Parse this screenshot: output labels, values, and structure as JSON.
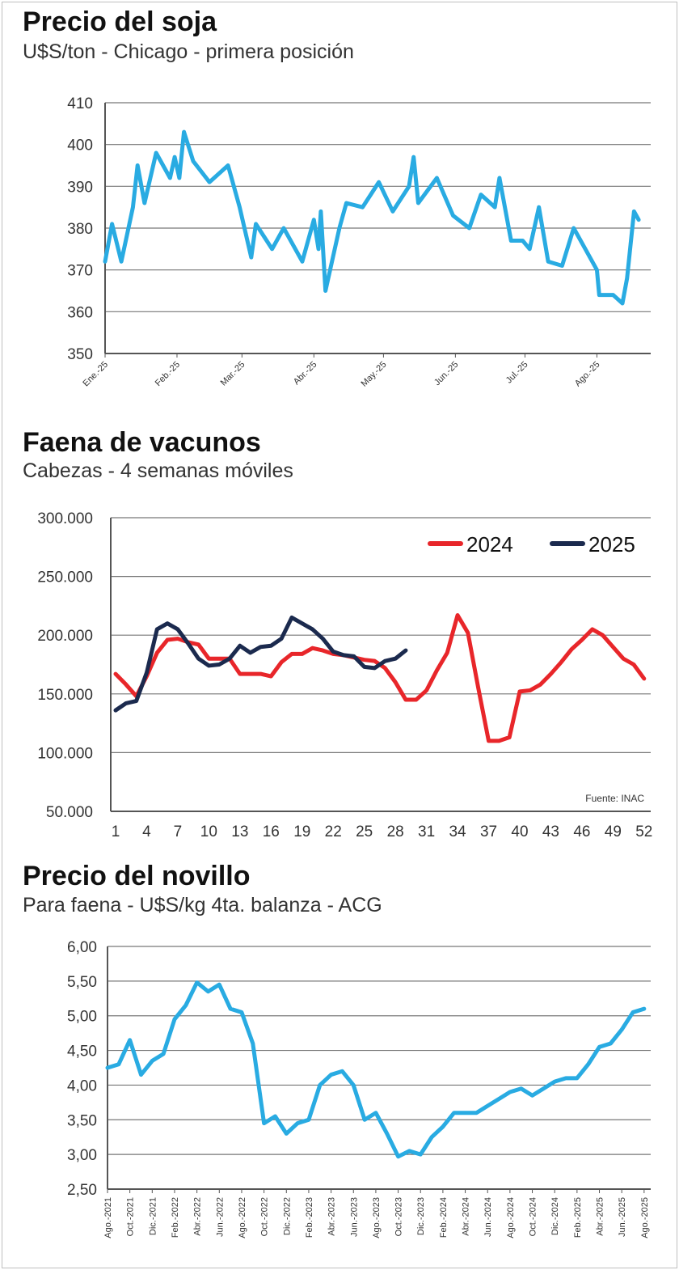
{
  "colors": {
    "light_blue": "#29abe2",
    "red": "#e8262a",
    "navy": "#1b2a4e",
    "grid": "#555555"
  },
  "chart_data": [
    {
      "type": "line",
      "title": "Precio del soja",
      "subtitle": "U$S/ton - Chicago - primera posición",
      "ylim": [
        350,
        410
      ],
      "yticks": [
        "350",
        "360",
        "370",
        "380",
        "390",
        "400",
        "410"
      ],
      "xtick_labels": [
        "Ene.-25",
        "Feb.-25",
        "Mar.-25",
        "Abr.-25",
        "May.-25",
        "Jun.-25",
        "Jul.-25",
        "Ago.-25"
      ],
      "grid": true,
      "series": [
        {
          "color": "#29abe2",
          "points": [
            [
              "2025-01-01",
              372
            ],
            [
              "2025-01-04",
              381
            ],
            [
              "2025-01-08",
              372
            ],
            [
              "2025-01-13",
              385
            ],
            [
              "2025-01-15",
              395
            ],
            [
              "2025-01-18",
              386
            ],
            [
              "2025-01-23",
              398
            ],
            [
              "2025-01-29",
              392
            ],
            [
              "2025-01-31",
              397
            ],
            [
              "2025-02-02",
              392
            ],
            [
              "2025-02-04",
              403
            ],
            [
              "2025-02-08",
              396
            ],
            [
              "2025-02-15",
              391
            ],
            [
              "2025-02-23",
              395
            ],
            [
              "2025-02-28",
              385
            ],
            [
              "2025-03-05",
              373
            ],
            [
              "2025-03-07",
              381
            ],
            [
              "2025-03-14",
              375
            ],
            [
              "2025-03-19",
              380
            ],
            [
              "2025-03-27",
              372
            ],
            [
              "2025-04-01",
              382
            ],
            [
              "2025-04-03",
              375
            ],
            [
              "2025-04-04",
              384
            ],
            [
              "2025-04-06",
              365
            ],
            [
              "2025-04-12",
              380
            ],
            [
              "2025-04-15",
              386
            ],
            [
              "2025-04-22",
              385
            ],
            [
              "2025-04-29",
              391
            ],
            [
              "2025-05-05",
              384
            ],
            [
              "2025-05-12",
              390
            ],
            [
              "2025-05-14",
              397
            ],
            [
              "2025-05-16",
              386
            ],
            [
              "2025-05-24",
              392
            ],
            [
              "2025-05-31",
              383
            ],
            [
              "2025-06-07",
              380
            ],
            [
              "2025-06-12",
              388
            ],
            [
              "2025-06-18",
              385
            ],
            [
              "2025-06-20",
              392
            ],
            [
              "2025-06-25",
              377
            ],
            [
              "2025-06-30",
              377
            ],
            [
              "2025-07-03",
              375
            ],
            [
              "2025-07-07",
              385
            ],
            [
              "2025-07-11",
              372
            ],
            [
              "2025-07-17",
              371
            ],
            [
              "2025-07-22",
              380
            ],
            [
              "2025-07-27",
              375
            ],
            [
              "2025-08-01",
              370
            ],
            [
              "2025-08-02",
              364
            ],
            [
              "2025-08-08",
              364
            ],
            [
              "2025-08-12",
              362
            ],
            [
              "2025-08-14",
              368
            ],
            [
              "2025-08-17",
              384
            ],
            [
              "2025-08-19",
              382
            ]
          ]
        }
      ]
    },
    {
      "type": "line",
      "title": "Faena de vacunos",
      "subtitle": "Cabezas - 4 semanas móviles",
      "ylim": [
        50000,
        300000
      ],
      "yticks": [
        "50.000",
        "100.000",
        "150.000",
        "200.000",
        "250.000",
        "300.000"
      ],
      "xtick_labels": [
        "1",
        "4",
        "7",
        "10",
        "13",
        "16",
        "19",
        "22",
        "25",
        "28",
        "31",
        "34",
        "37",
        "40",
        "43",
        "46",
        "49",
        "52"
      ],
      "legend": "top-right",
      "source": "Fuente: INAC",
      "grid": true,
      "series": [
        {
          "name": "2024",
          "color": "#e8262a",
          "values": [
            167000,
            158000,
            148000,
            165000,
            185000,
            196000,
            197000,
            194000,
            192000,
            180000,
            180000,
            180000,
            167000,
            167000,
            167000,
            165000,
            177000,
            184000,
            184000,
            189000,
            187000,
            184000,
            183000,
            181000,
            179000,
            178000,
            172000,
            160000,
            145000,
            145000,
            153000,
            170000,
            185000,
            217000,
            202000,
            155000,
            110000,
            110000,
            113000,
            152000,
            153000,
            158000,
            167000,
            177000,
            188000,
            196000,
            205000,
            200000,
            190000,
            180000,
            175000,
            163000
          ]
        },
        {
          "name": "2025",
          "color": "#1b2a4e",
          "values": [
            136000,
            142000,
            144000,
            168000,
            205000,
            210000,
            205000,
            193000,
            180000,
            174000,
            175000,
            180000,
            191000,
            185000,
            190000,
            191000,
            197000,
            215000,
            210000,
            205000,
            197000,
            186000,
            183000,
            182000,
            173000,
            172000,
            178000,
            180000,
            187000
          ]
        }
      ]
    },
    {
      "type": "line",
      "title": "Precio del novillo",
      "subtitle": "Para faena - U$S/kg 4ta. balanza - ACG",
      "ylim": [
        2.5,
        6.0
      ],
      "yticks": [
        "2,50",
        "3,00",
        "3,50",
        "4,00",
        "4,50",
        "5,00",
        "5,50",
        "6,00"
      ],
      "xtick_labels": [
        "Ago.-2021",
        "Oct.-2021",
        "Dic.-2021",
        "Feb.-2022",
        "Abr.-2022",
        "Jun.-2022",
        "Ago.-2022",
        "Oct.-2022",
        "Dic.-2022",
        "Feb.-2023",
        "Abr.-2023",
        "Jun.-2023",
        "Ago.-2023",
        "Oct.-2023",
        "Dic.-2023",
        "Feb.-2024",
        "Abr.-2024",
        "Jun.-2024",
        "Ago.-2024",
        "Oct.-2024",
        "Dic.-2024",
        "Feb.-2025",
        "Abr.-2025",
        "Jun.-2025",
        "Ago.-2025"
      ],
      "grid": true,
      "series": [
        {
          "color": "#29abe2",
          "points": [
            [
              "2021-08",
              4.25
            ],
            [
              "2021-09",
              4.3
            ],
            [
              "2021-10",
              4.65
            ],
            [
              "2021-11",
              4.15
            ],
            [
              "2021-12",
              4.35
            ],
            [
              "2022-01",
              4.45
            ],
            [
              "2022-02",
              4.95
            ],
            [
              "2022-03",
              5.15
            ],
            [
              "2022-04",
              5.48
            ],
            [
              "2022-05",
              5.35
            ],
            [
              "2022-06",
              5.45
            ],
            [
              "2022-07",
              5.1
            ],
            [
              "2022-08",
              5.05
            ],
            [
              "2022-09",
              4.6
            ],
            [
              "2022-10",
              3.45
            ],
            [
              "2022-11",
              3.55
            ],
            [
              "2022-12",
              3.3
            ],
            [
              "2023-01",
              3.45
            ],
            [
              "2023-02",
              3.5
            ],
            [
              "2023-03",
              4.0
            ],
            [
              "2023-04",
              4.15
            ],
            [
              "2023-05",
              4.2
            ],
            [
              "2023-06",
              4.0
            ],
            [
              "2023-07",
              3.5
            ],
            [
              "2023-08",
              3.6
            ],
            [
              "2023-09",
              3.3
            ],
            [
              "2023-10",
              2.97
            ],
            [
              "2023-11",
              3.05
            ],
            [
              "2023-12",
              3.0
            ],
            [
              "2024-01",
              3.25
            ],
            [
              "2024-02",
              3.4
            ],
            [
              "2024-03",
              3.6
            ],
            [
              "2024-04",
              3.6
            ],
            [
              "2024-05",
              3.6
            ],
            [
              "2024-06",
              3.7
            ],
            [
              "2024-07",
              3.8
            ],
            [
              "2024-08",
              3.9
            ],
            [
              "2024-09",
              3.95
            ],
            [
              "2024-10",
              3.85
            ],
            [
              "2024-11",
              3.95
            ],
            [
              "2024-12",
              4.05
            ],
            [
              "2025-01",
              4.1
            ],
            [
              "2025-02",
              4.1
            ],
            [
              "2025-03",
              4.3
            ],
            [
              "2025-04",
              4.55
            ],
            [
              "2025-05",
              4.6
            ],
            [
              "2025-06",
              4.8
            ],
            [
              "2025-07",
              5.05
            ],
            [
              "2025-08",
              5.1
            ]
          ]
        }
      ]
    }
  ]
}
